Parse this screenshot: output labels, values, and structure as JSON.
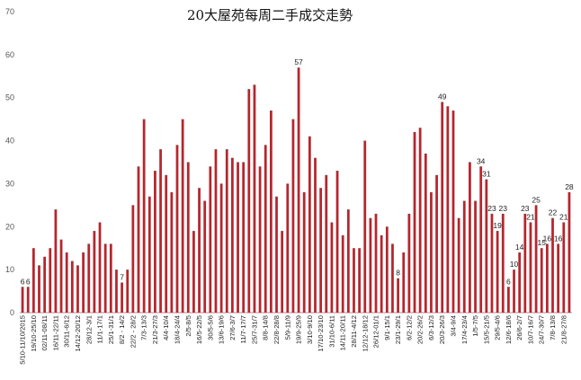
{
  "chart_data": {
    "type": "bar",
    "title": "20大屋苑每周二手成交走勢",
    "xlabel": "",
    "ylabel": "",
    "ylim": [
      0,
      70
    ],
    "yticks": [
      0,
      10,
      20,
      30,
      40,
      50,
      60,
      70
    ],
    "grid": false,
    "legend": "none",
    "bar_color": "#b5262d",
    "categories": [
      "5/10-11/10/2015",
      "",
      "19/10-25/10",
      "",
      "02/11-08/11",
      "",
      "16/11-22/11",
      "",
      "30/11-6/12",
      "",
      "14/12-20/12",
      "",
      "28/12-3/1",
      "",
      "11/1-17/1",
      "",
      "25/1-31/1",
      "",
      "8/2 - 14/2",
      "",
      "22/2 - 28/2",
      "",
      "7/3-13/3",
      "",
      "21/3-27/3",
      "",
      "4/4-10/4",
      "",
      "18/4-24/4",
      "",
      "2/5-8/5",
      "",
      "16/5-22/5",
      "",
      "30/5-5/6",
      "",
      "13/6-19/6",
      "",
      "27/6-3/7",
      "",
      "11/7-17/7",
      "",
      "25/7-31/7",
      "",
      "8/8-14/8",
      "",
      "22/8-28/8",
      "",
      "5/9-11/9",
      "",
      "19/9-25/9",
      "",
      "3/10-9/10",
      "",
      "17/10-23/10",
      "",
      "31/10-6/11",
      "",
      "14/11-20/11",
      "",
      "28/11-4/12",
      "",
      "12/12-18/12",
      "",
      "26/12-01/1",
      "",
      "9/1-15/1",
      "",
      "23/1-29/1",
      "",
      "6/2-12/2",
      "",
      "20/2-26/2",
      "",
      "6/3-12/3",
      "",
      "20/3-26/3",
      "",
      "3/4-9/4",
      "",
      "17/4-23/4",
      "",
      "1/5-7/5",
      "",
      "15/5-21/5",
      "",
      "29/5-4/6",
      "",
      "12/6-18/6",
      "",
      "26/6-2/7",
      "",
      "10/7-16/7",
      "",
      "24/7-30/7",
      "",
      "7/8-13/8",
      "",
      "21/8-27/8",
      ""
    ],
    "values": [
      6,
      6,
      15,
      11,
      13,
      15,
      24,
      17,
      14,
      12,
      11,
      14,
      16,
      19,
      21,
      16,
      16,
      10,
      7,
      10,
      25,
      34,
      45,
      27,
      33,
      38,
      32,
      28,
      39,
      45,
      35,
      19,
      29,
      26,
      34,
      38,
      30,
      38,
      36,
      35,
      35,
      52,
      53,
      34,
      39,
      47,
      27,
      19,
      30,
      45,
      57,
      28,
      41,
      36,
      29,
      32,
      21,
      33,
      18,
      24,
      15,
      15,
      40,
      22,
      23,
      18,
      20,
      16,
      8,
      14,
      23,
      42,
      43,
      37,
      28,
      32,
      49,
      48,
      47,
      22,
      26,
      35,
      26,
      34,
      31,
      23,
      19,
      23,
      6,
      10,
      14,
      23,
      21,
      25,
      15,
      16,
      22,
      16,
      21,
      28
    ],
    "labeled_points": [
      {
        "index": 0,
        "label": "6"
      },
      {
        "index": 1,
        "label": "6"
      },
      {
        "index": 18,
        "label": "7"
      },
      {
        "index": 50,
        "label": "57"
      },
      {
        "index": 68,
        "label": "8"
      },
      {
        "index": 76,
        "label": "49"
      },
      {
        "index": 83,
        "label": "34"
      },
      {
        "index": 84,
        "label": "31"
      },
      {
        "index": 85,
        "label": "23"
      },
      {
        "index": 86,
        "label": "19"
      },
      {
        "index": 87,
        "label": "23"
      },
      {
        "index": 88,
        "label": "6"
      },
      {
        "index": 89,
        "label": "10"
      },
      {
        "index": 90,
        "label": "14"
      },
      {
        "index": 91,
        "label": "23"
      },
      {
        "index": 92,
        "label": "21"
      },
      {
        "index": 93,
        "label": "25"
      },
      {
        "index": 94,
        "label": "15"
      },
      {
        "index": 95,
        "label": "16"
      },
      {
        "index": 96,
        "label": "22"
      },
      {
        "index": 97,
        "label": "16"
      },
      {
        "index": 98,
        "label": "21"
      },
      {
        "index": 99,
        "label": "28"
      }
    ]
  }
}
